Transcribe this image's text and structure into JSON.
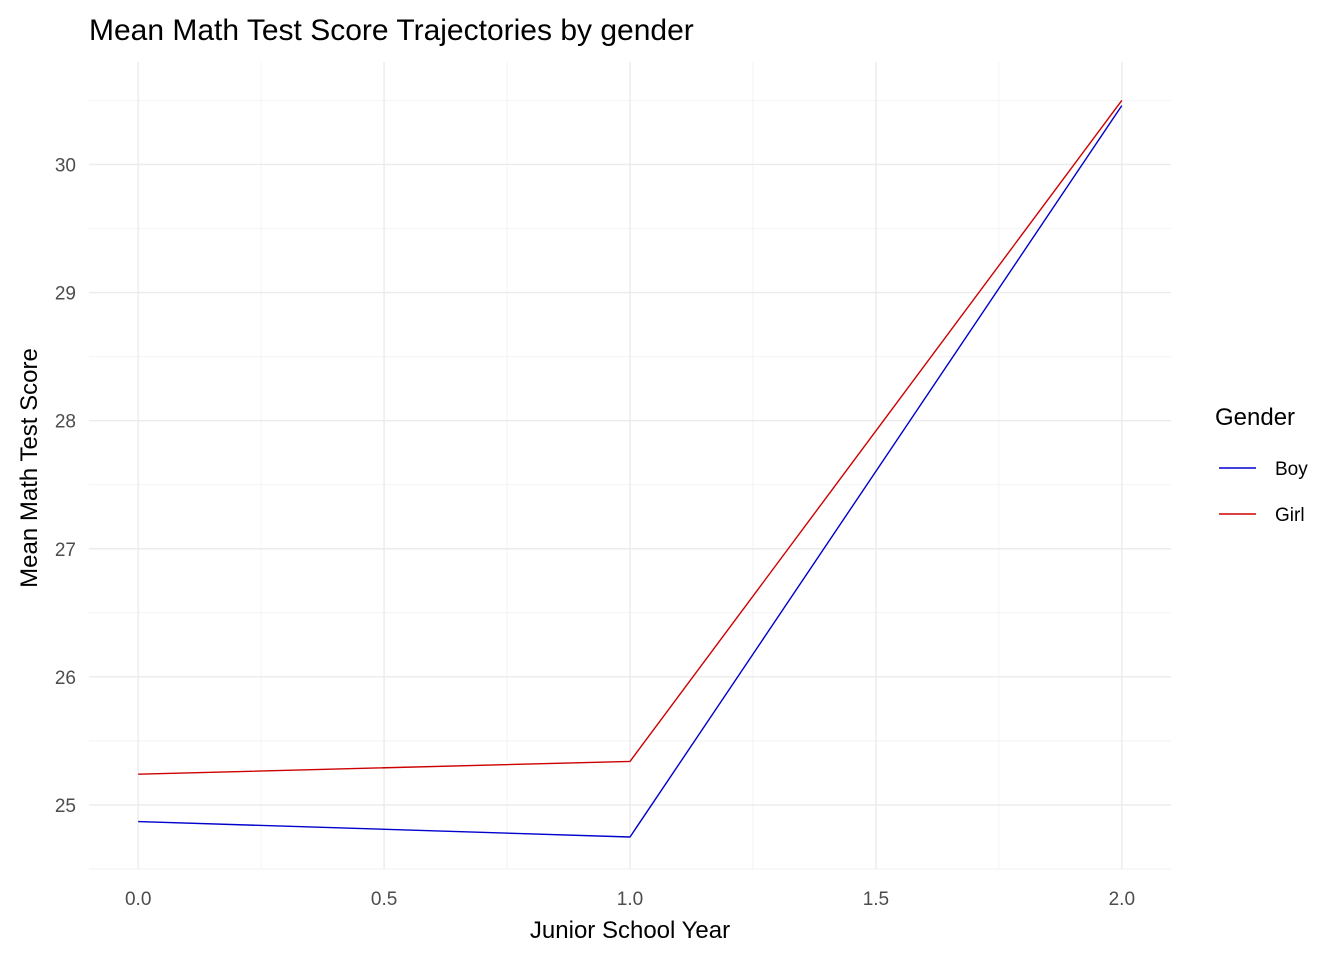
{
  "chart_data": {
    "type": "line",
    "title": "Mean Math Test Score Trajectories by gender",
    "xlabel": "Junior School Year",
    "ylabel": "Mean Math Test Score",
    "xlim": [
      -0.1,
      2.1
    ],
    "ylim": [
      24.5,
      30.8
    ],
    "x_ticks": [
      0.0,
      0.5,
      1.0,
      1.5,
      2.0
    ],
    "x_tick_labels": [
      "0.0",
      "0.5",
      "1.0",
      "1.5",
      "2.0"
    ],
    "y_ticks": [
      25,
      26,
      27,
      28,
      29,
      30
    ],
    "y_tick_labels": [
      "25",
      "26",
      "27",
      "28",
      "29",
      "30"
    ],
    "grid": true,
    "legend": {
      "title": "Gender",
      "placement": "right"
    },
    "x": [
      0,
      1,
      2
    ],
    "series": [
      {
        "name": "Boy",
        "color": "#0000CD",
        "values": [
          24.87,
          24.75,
          30.46
        ]
      },
      {
        "name": "Girl",
        "color": "#CD0000",
        "values": [
          25.24,
          25.34,
          30.5
        ]
      }
    ]
  }
}
